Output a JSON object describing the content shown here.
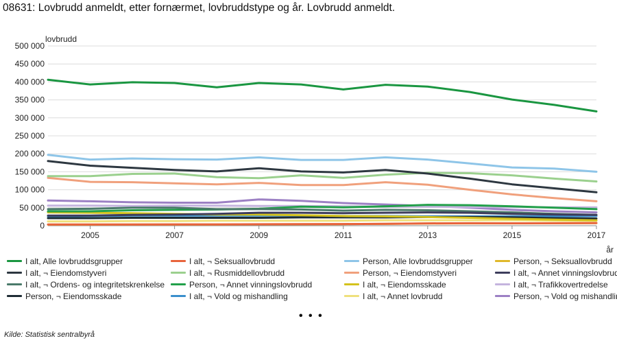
{
  "title": "08631: Lovbrudd anmeldt, etter fornærmet, lovbruddstype og år. Lovbrudd anmeldt.",
  "source": "Kilde:  Statistisk sentralbyrå",
  "more_indicator": "• • •",
  "chart_data": {
    "type": "line",
    "ylabel": "lovbrudd",
    "xlabel": "år",
    "ylim": [
      0,
      500000
    ],
    "xlim": [
      2004,
      2017
    ],
    "yticks": [
      0,
      50000,
      100000,
      150000,
      200000,
      250000,
      300000,
      350000,
      400000,
      450000,
      500000
    ],
    "ytick_labels": [
      "0",
      "50 000",
      "100 000",
      "150 000",
      "200 000",
      "250 000",
      "300 000",
      "350 000",
      "400 000",
      "450 000",
      "500 000"
    ],
    "xticks": [
      2005,
      2007,
      2009,
      2011,
      2013,
      2015,
      2017
    ],
    "xtick_labels": [
      "2005",
      "2007",
      "2009",
      "2011",
      "2013",
      "2015",
      "2017"
    ],
    "grid": true,
    "legend_position": "bottom",
    "x": [
      2004,
      2005,
      2006,
      2007,
      2008,
      2009,
      2010,
      2011,
      2012,
      2013,
      2014,
      2015,
      2016,
      2017
    ],
    "series": [
      {
        "name": "I alt, Alle lovbruddsgrupper",
        "color": "#1a9641",
        "values": [
          406000,
          393000,
          399000,
          397000,
          385000,
          397000,
          393000,
          379000,
          392000,
          387000,
          372000,
          351000,
          336000,
          318000
        ]
      },
      {
        "name": "I alt, ¬ Seksuallovbrudd",
        "color": "#e8643c",
        "values": [
          3200,
          3300,
          3400,
          3600,
          3700,
          4100,
          4200,
          4600,
          5200,
          6500,
          6800,
          6700,
          6900,
          7400
        ]
      },
      {
        "name": "Person, Alle lovbruddsgrupper",
        "color": "#8ec5e8",
        "values": [
          197000,
          184000,
          187000,
          185000,
          184000,
          190000,
          183000,
          183000,
          190000,
          184000,
          173000,
          162000,
          159000,
          150000
        ]
      },
      {
        "name": "Person, ¬ Seksuallovbrudd",
        "color": "#e0b82a",
        "values": [
          3000,
          3100,
          3200,
          3400,
          3500,
          3900,
          4000,
          4400,
          5000,
          6200,
          6500,
          6400,
          6600,
          7100
        ]
      },
      {
        "name": "I alt, ¬ Eiendomstyveri",
        "color": "#2d3740",
        "values": [
          180000,
          167000,
          161000,
          155000,
          151000,
          160000,
          151000,
          148000,
          155000,
          145000,
          131000,
          115000,
          104000,
          93000
        ]
      },
      {
        "name": "I alt, ¬ Rusmiddellovbrudd",
        "color": "#9bd08e",
        "values": [
          138000,
          138000,
          144000,
          145000,
          135000,
          132000,
          140000,
          133000,
          142000,
          147000,
          146000,
          140000,
          131000,
          123000
        ]
      },
      {
        "name": "Person, ¬ Eiendomstyveri",
        "color": "#f0a07c",
        "values": [
          133000,
          122000,
          121000,
          118000,
          115000,
          119000,
          113000,
          113000,
          121000,
          114000,
          100000,
          87000,
          77000,
          68000
        ]
      },
      {
        "name": "I alt, ¬ Annet vinningslovbrudd",
        "color": "#3d3d5c",
        "values": [
          28000,
          28000,
          30000,
          31000,
          33000,
          36000,
          36000,
          35000,
          36000,
          37000,
          36000,
          33000,
          31000,
          30000
        ]
      },
      {
        "name": "I alt, ¬ Ordens- og integritetskrenkelse",
        "color": "#4a7a6a",
        "values": [
          46000,
          47000,
          50000,
          50000,
          46000,
          46000,
          45000,
          42000,
          44000,
          43000,
          40000,
          37000,
          33000,
          30000
        ]
      },
      {
        "name": "Person, ¬ Annet vinningslovbrudd",
        "color": "#22a04a",
        "values": [
          40000,
          40000,
          43000,
          44000,
          45000,
          47000,
          53000,
          51000,
          54000,
          58000,
          57000,
          54000,
          50000,
          46000
        ]
      },
      {
        "name": "I alt, ¬ Eiendomsskade",
        "color": "#d4c21c",
        "values": [
          37000,
          36000,
          35000,
          33000,
          31000,
          31000,
          29000,
          27000,
          26000,
          24000,
          22000,
          19000,
          17000,
          15000
        ]
      },
      {
        "name": "I alt, ¬ Trafikkovertredelse",
        "color": "#c4b4de",
        "values": [
          56000,
          56000,
          55000,
          56000,
          56000,
          55000,
          55000,
          54000,
          53000,
          53000,
          52000,
          52000,
          51000,
          51000
        ]
      },
      {
        "name": "Person, ¬ Eiendomsskade",
        "color": "#1f2d35",
        "values": [
          21000,
          21000,
          22000,
          22000,
          22000,
          22000,
          23000,
          23000,
          23000,
          24000,
          24000,
          23000,
          21000,
          20000
        ]
      },
      {
        "name": "I alt, ¬ Vold og mishandling",
        "color": "#3a8fcc",
        "values": [
          26000,
          27000,
          28000,
          28000,
          28000,
          28000,
          28000,
          27000,
          27000,
          26000,
          26000,
          26000,
          26000,
          27000
        ]
      },
      {
        "name": "I alt, ¬ Annet lovbrudd",
        "color": "#efe07c",
        "values": [
          12000,
          12000,
          13000,
          13000,
          14000,
          14000,
          14000,
          14000,
          15000,
          15000,
          15000,
          15000,
          14000,
          14000
        ]
      },
      {
        "name": "Person, ¬ Vold og mishandling",
        "color": "#9c80c4",
        "values": [
          70000,
          68000,
          65000,
          64000,
          64000,
          73000,
          69000,
          63000,
          59000,
          55000,
          50000,
          44000,
          40000,
          37000
        ]
      }
    ]
  }
}
